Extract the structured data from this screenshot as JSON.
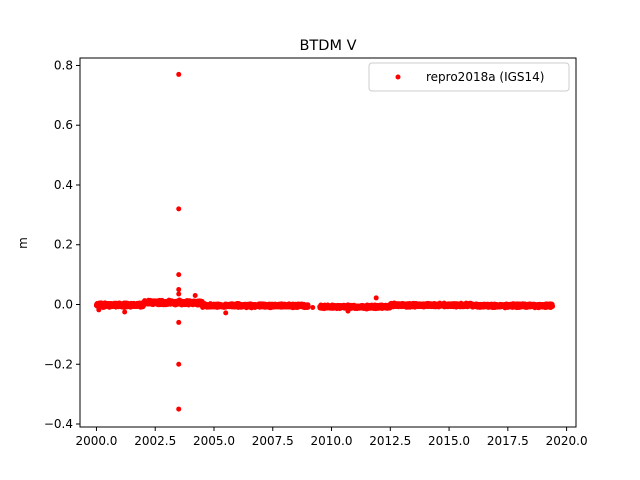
{
  "chart_data": {
    "type": "scatter",
    "title": "BTDM V",
    "xlabel": "",
    "ylabel": "m",
    "xlim": [
      1999.3,
      2020.4
    ],
    "ylim": [
      -0.41,
      0.825
    ],
    "xticks": [
      2000.0,
      2002.5,
      2005.0,
      2007.5,
      2010.0,
      2012.5,
      2015.0,
      2017.5,
      2020.0
    ],
    "xtick_labels": [
      "2000.0",
      "2002.5",
      "2005.0",
      "2007.5",
      "2010.0",
      "2012.5",
      "2015.0",
      "2017.5",
      "2020.0"
    ],
    "yticks": [
      -0.4,
      -0.2,
      0.0,
      0.2,
      0.4,
      0.6,
      0.8
    ],
    "ytick_labels": [
      "−0.4",
      "−0.2",
      "0.0",
      "0.2",
      "0.4",
      "0.6",
      "0.8"
    ],
    "grid": false,
    "legend_position": "top-right",
    "series": [
      {
        "name": "repro2018a (IGS14)",
        "color": "#ff0000",
        "marker": "circle",
        "dense_band": {
          "segments": [
            {
              "x_start": 2000.0,
              "x_end": 2002.0,
              "y_center": -0.002,
              "y_spread": 0.009
            },
            {
              "x_start": 2002.0,
              "x_end": 2004.5,
              "y_center": 0.006,
              "y_spread": 0.01
            },
            {
              "x_start": 2004.5,
              "x_end": 2009.0,
              "y_center": -0.004,
              "y_spread": 0.008
            },
            {
              "x_start": 2009.5,
              "x_end": 2012.5,
              "y_center": -0.008,
              "y_spread": 0.008
            },
            {
              "x_start": 2012.5,
              "x_end": 2016.0,
              "y_center": -0.002,
              "y_spread": 0.008
            },
            {
              "x_start": 2016.0,
              "x_end": 2019.4,
              "y_center": -0.004,
              "y_spread": 0.008
            }
          ],
          "step": 0.004
        },
        "points": [
          {
            "x": 2003.5,
            "y": 0.77
          },
          {
            "x": 2003.5,
            "y": 0.32
          },
          {
            "x": 2003.5,
            "y": 0.1
          },
          {
            "x": 2003.5,
            "y": 0.05
          },
          {
            "x": 2003.5,
            "y": 0.035
          },
          {
            "x": 2003.5,
            "y": -0.06
          },
          {
            "x": 2003.5,
            "y": -0.2
          },
          {
            "x": 2003.5,
            "y": -0.35
          },
          {
            "x": 2004.2,
            "y": 0.03
          },
          {
            "x": 2011.9,
            "y": 0.022
          },
          {
            "x": 2000.1,
            "y": -0.018
          },
          {
            "x": 2001.2,
            "y": -0.025
          },
          {
            "x": 2005.5,
            "y": -0.028
          },
          {
            "x": 2010.7,
            "y": -0.022
          },
          {
            "x": 2009.2,
            "y": -0.01
          },
          {
            "x": 2009.6,
            "y": -0.012
          }
        ]
      }
    ]
  }
}
